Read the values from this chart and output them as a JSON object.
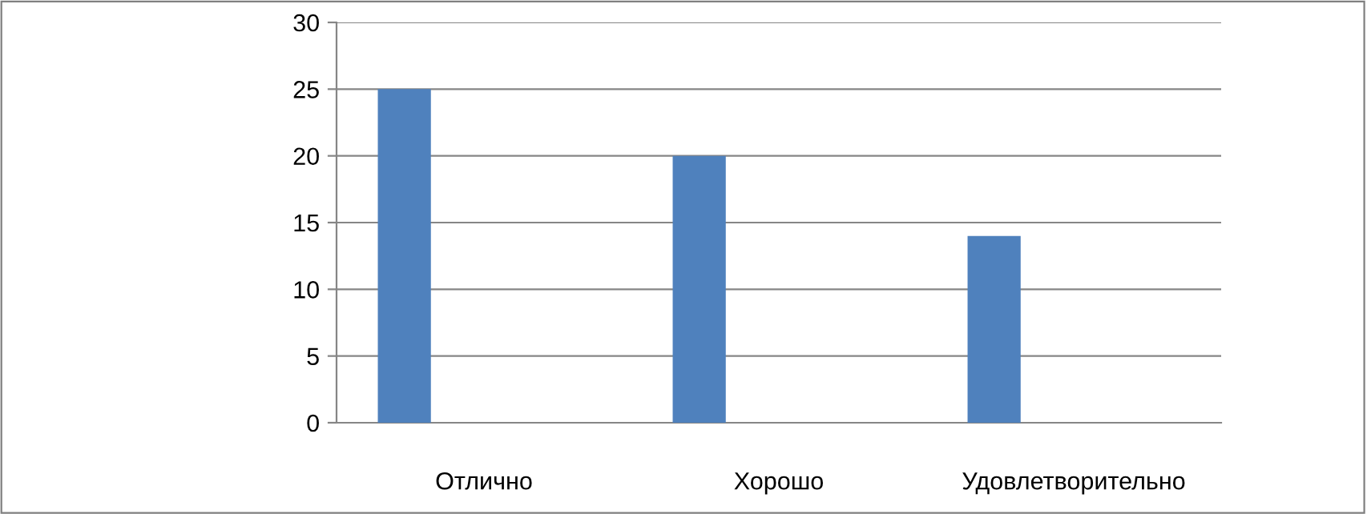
{
  "chart_data": {
    "type": "bar",
    "categories": [
      "Отлично",
      "Хорошо",
      "Удовлетворительно"
    ],
    "values": [
      25,
      20,
      14
    ],
    "color": "#4f81bd",
    "ylim": [
      0,
      30
    ],
    "yticks": [
      0,
      5,
      10,
      15,
      20,
      25,
      30
    ],
    "grid": "y"
  }
}
